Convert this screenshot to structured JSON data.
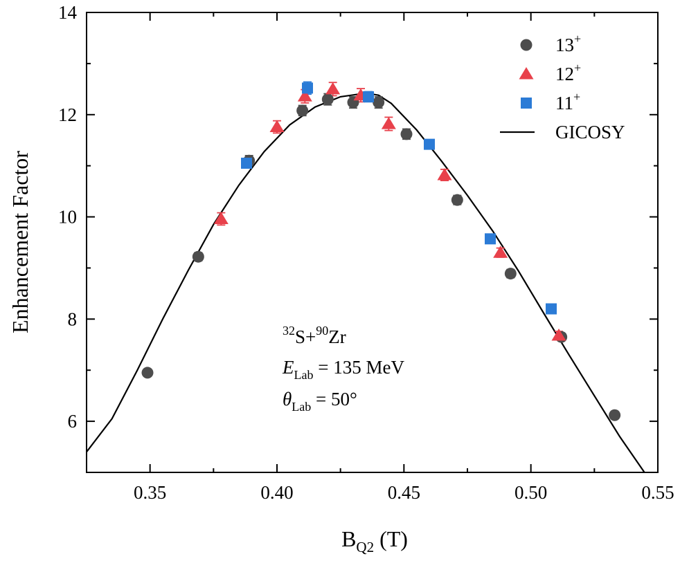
{
  "chart_data": {
    "type": "scatter",
    "xlabel": "B",
    "xlabel_sub": "Q2",
    "xlabel_unit": " (T)",
    "ylabel": "Enhancement Factor",
    "xlim": [
      0.325,
      0.55
    ],
    "ylim": [
      5.0,
      14.0
    ],
    "x_ticks": [
      0.35,
      0.4,
      0.45,
      0.5,
      0.55
    ],
    "x_tick_labels": [
      "0.35",
      "0.40",
      "0.45",
      "0.50",
      "0.55"
    ],
    "y_ticks": [
      6,
      8,
      10,
      12,
      14
    ],
    "y_tick_labels": [
      "6",
      "8",
      "10",
      "12",
      "14"
    ],
    "grid": false,
    "legend_position": "top-right",
    "series": [
      {
        "name": "13",
        "sup": "+",
        "marker": "circle",
        "color": "#4d4d4d",
        "points": [
          {
            "x": 0.349,
            "y": 6.95,
            "err": 0.07
          },
          {
            "x": 0.369,
            "y": 9.22,
            "err": 0.08
          },
          {
            "x": 0.389,
            "y": 11.1,
            "err": 0.1
          },
          {
            "x": 0.41,
            "y": 12.08,
            "err": 0.1
          },
          {
            "x": 0.42,
            "y": 12.3,
            "err": 0.11
          },
          {
            "x": 0.43,
            "y": 12.24,
            "err": 0.11
          },
          {
            "x": 0.44,
            "y": 12.24,
            "err": 0.11
          },
          {
            "x": 0.451,
            "y": 11.62,
            "err": 0.1
          },
          {
            "x": 0.471,
            "y": 10.33,
            "err": 0.09
          },
          {
            "x": 0.492,
            "y": 8.89,
            "err": 0.08
          },
          {
            "x": 0.512,
            "y": 7.65,
            "err": 0.07
          },
          {
            "x": 0.533,
            "y": 6.12,
            "err": 0.07
          }
        ]
      },
      {
        "name": "12",
        "sup": "+",
        "marker": "triangle",
        "color": "#e8414b",
        "points": [
          {
            "x": 0.378,
            "y": 9.96,
            "err": 0.12
          },
          {
            "x": 0.4,
            "y": 11.76,
            "err": 0.12
          },
          {
            "x": 0.411,
            "y": 12.36,
            "err": 0.13
          },
          {
            "x": 0.422,
            "y": 12.5,
            "err": 0.13
          },
          {
            "x": 0.433,
            "y": 12.38,
            "err": 0.13
          },
          {
            "x": 0.444,
            "y": 11.82,
            "err": 0.13
          },
          {
            "x": 0.466,
            "y": 10.82,
            "err": 0.11
          },
          {
            "x": 0.488,
            "y": 9.3,
            "err": 0.09
          },
          {
            "x": 0.511,
            "y": 7.68,
            "err": 0.08
          }
        ]
      },
      {
        "name": "11",
        "sup": "+",
        "marker": "square",
        "color": "#2b7bd6",
        "points": [
          {
            "x": 0.388,
            "y": 11.05,
            "err": 0.06
          },
          {
            "x": 0.412,
            "y": 12.52,
            "err": 0.12
          },
          {
            "x": 0.436,
            "y": 12.35,
            "err": 0.1
          },
          {
            "x": 0.46,
            "y": 11.42,
            "err": 0.06
          },
          {
            "x": 0.484,
            "y": 9.57,
            "err": 0.05
          },
          {
            "x": 0.508,
            "y": 8.2,
            "err": 0.05
          }
        ]
      },
      {
        "name": "GICOSY",
        "marker": "line",
        "color": "#000000",
        "points": [
          {
            "x": 0.325,
            "y": 5.4
          },
          {
            "x": 0.335,
            "y": 6.05
          },
          {
            "x": 0.345,
            "y": 7.0
          },
          {
            "x": 0.355,
            "y": 8.0
          },
          {
            "x": 0.365,
            "y": 8.95
          },
          {
            "x": 0.375,
            "y": 9.85
          },
          {
            "x": 0.385,
            "y": 10.62
          },
          {
            "x": 0.395,
            "y": 11.28
          },
          {
            "x": 0.405,
            "y": 11.8
          },
          {
            "x": 0.415,
            "y": 12.15
          },
          {
            "x": 0.425,
            "y": 12.35
          },
          {
            "x": 0.435,
            "y": 12.42
          },
          {
            "x": 0.44,
            "y": 12.38
          },
          {
            "x": 0.445,
            "y": 12.22
          },
          {
            "x": 0.455,
            "y": 11.7
          },
          {
            "x": 0.465,
            "y": 11.08
          },
          {
            "x": 0.475,
            "y": 10.42
          },
          {
            "x": 0.485,
            "y": 9.72
          },
          {
            "x": 0.495,
            "y": 8.95
          },
          {
            "x": 0.505,
            "y": 8.12
          },
          {
            "x": 0.515,
            "y": 7.3
          },
          {
            "x": 0.525,
            "y": 6.5
          },
          {
            "x": 0.535,
            "y": 5.7
          },
          {
            "x": 0.545,
            "y": 4.98
          }
        ]
      }
    ],
    "annotation": {
      "line1": {
        "sup1": "32",
        "text1": "S+",
        "sup2": "90",
        "text2": "Zr"
      },
      "line2": {
        "var": "E",
        "sub": "Lab",
        "text": " = 135 MeV"
      },
      "line3": {
        "var": "θ",
        "sub": "Lab",
        "text": " = 50°"
      }
    }
  }
}
